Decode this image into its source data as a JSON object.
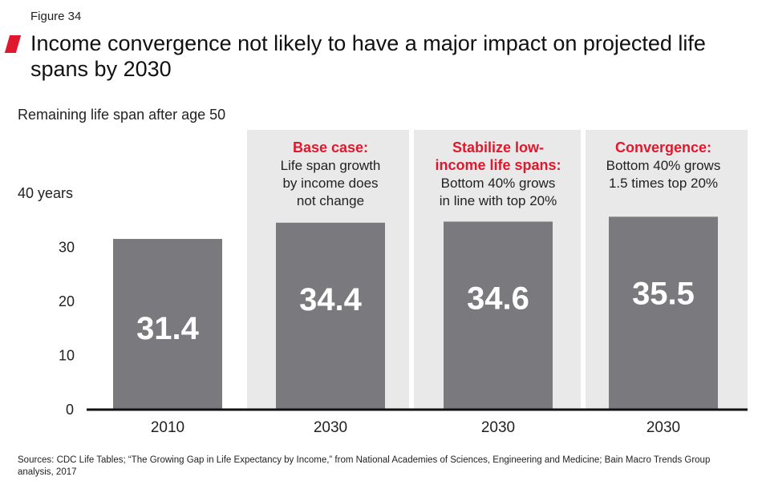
{
  "figure_label": "Figure 34",
  "accent_color": "#e0182d",
  "bar_color": "#7a797e",
  "panel_color": "#e9e9e9",
  "sources": "Sources: CDC Life Tables; “The Growing Gap in Life Expectancy by Income,” from National Academies of Sciences, Engineering and Medicine; Bain Macro Trends Group analysis, 2017",
  "chart_data": {
    "type": "bar",
    "title": "Income convergence not likely to have a major impact on projected life spans by 2030",
    "ylabel": "Remaining life span after age 50",
    "xlabel": "",
    "ylim": [
      0,
      40
    ],
    "yticks": [
      "0",
      "10",
      "20",
      "30",
      "40 years"
    ],
    "categories": [
      "2010",
      "2030",
      "2030",
      "2030"
    ],
    "values": [
      31.4,
      34.4,
      34.6,
      35.5
    ],
    "value_labels": [
      "31.4",
      "34.4",
      "34.6",
      "35.5"
    ],
    "grid": false,
    "annotations": [
      null,
      {
        "heading": [
          "Base case:"
        ],
        "body": [
          "Life span growth",
          "by income does",
          "not change"
        ]
      },
      {
        "heading": [
          "Stabilize low-",
          "income life spans:"
        ],
        "body": [
          "Bottom 40% grows",
          "in line with top 20%"
        ]
      },
      {
        "heading": [
          "Convergence:"
        ],
        "body": [
          "Bottom 40% grows",
          "1.5 times top 20%"
        ]
      }
    ]
  }
}
